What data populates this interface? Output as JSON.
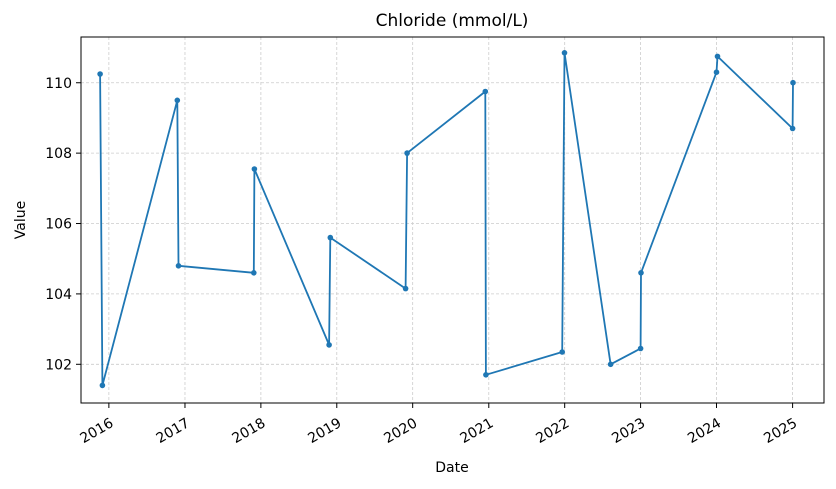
{
  "chart_data": {
    "type": "line",
    "title": "Chloride (mmol/L)",
    "xlabel": "Date",
    "ylabel": "Value",
    "x_tick_labels": [
      "2016",
      "2017",
      "2018",
      "2019",
      "2020",
      "2021",
      "2022",
      "2023",
      "2024",
      "2025"
    ],
    "y_tick_labels": [
      "102",
      "104",
      "106",
      "108",
      "110"
    ],
    "y_ticks": [
      102,
      104,
      106,
      108,
      110
    ],
    "xlim": [
      "2015-08-20",
      "2025-06-01"
    ],
    "ylim": [
      100.9,
      111.3
    ],
    "grid": true,
    "legend": "none",
    "series": [
      {
        "color": "#1f77b4",
        "x": [
          "2015-11-20",
          "2015-12-01",
          "2016-11-25",
          "2016-12-01",
          "2017-11-28",
          "2017-12-01",
          "2018-11-25",
          "2018-12-01",
          "2019-11-28",
          "2019-12-05",
          "2020-12-15",
          "2020-12-18",
          "2021-12-20",
          "2021-12-31",
          "2022-08-10",
          "2023-01-01",
          "2023-01-03",
          "2024-01-01",
          "2024-01-06",
          "2025-01-01",
          "2025-01-03"
        ],
        "y": [
          110.25,
          101.4,
          109.5,
          104.8,
          104.6,
          107.55,
          102.55,
          105.6,
          104.15,
          108.0,
          109.75,
          101.7,
          102.35,
          110.85,
          102.0,
          102.45,
          104.6,
          110.3,
          110.75,
          108.7,
          110.0
        ]
      }
    ]
  }
}
